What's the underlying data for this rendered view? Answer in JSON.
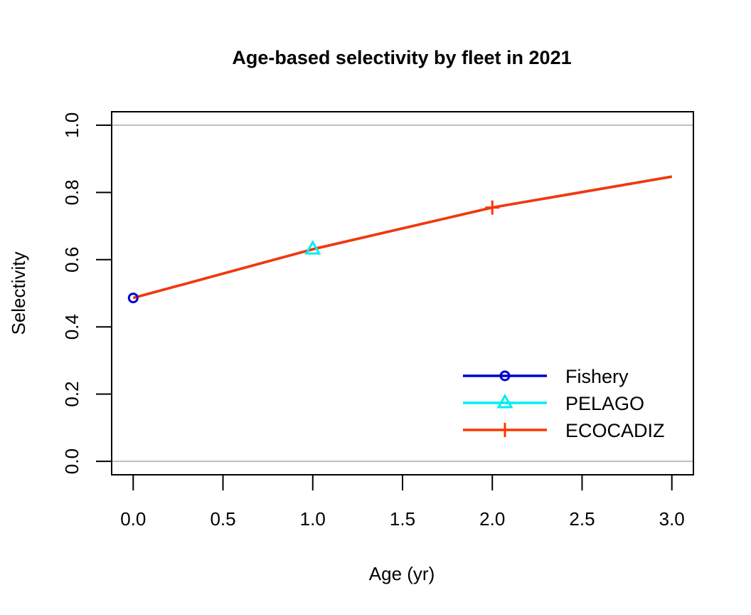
{
  "chart_data": {
    "type": "line",
    "title": "Age-based selectivity by fleet in 2021",
    "xlabel": "Age (yr)",
    "ylabel": "Selectivity",
    "xlim": [
      -0.12,
      3.12
    ],
    "ylim": [
      -0.04,
      1.04
    ],
    "x_ticks": [
      0.0,
      0.5,
      1.0,
      1.5,
      2.0,
      2.5,
      3.0
    ],
    "x_tick_labels": [
      "0.0",
      "0.5",
      "1.0",
      "1.5",
      "2.0",
      "2.5",
      "3.0"
    ],
    "y_ticks": [
      0.0,
      0.2,
      0.4,
      0.6,
      0.8,
      1.0
    ],
    "y_tick_labels": [
      "0.0",
      "0.2",
      "0.4",
      "0.6",
      "0.8",
      "1.0"
    ],
    "hlines": [
      0.0,
      1.0
    ],
    "hline_color": "#BEBEBE",
    "legend_position": "bottom-right",
    "x": [
      0,
      1,
      2,
      3
    ],
    "series": [
      {
        "name": "Fishery",
        "values": [
          0.486,
          0.631,
          0.755,
          0.847
        ],
        "color": "#0000CD",
        "marker": "circle"
      },
      {
        "name": "PELAGO",
        "values": [
          0.486,
          0.631,
          0.755,
          0.847
        ],
        "color": "#00EEEE",
        "marker": "triangle"
      },
      {
        "name": "ECOCADIZ",
        "values": [
          0.486,
          0.631,
          0.755,
          0.847
        ],
        "color": "#FF3300",
        "marker": "plus"
      }
    ],
    "marker_points": [
      {
        "series": 0,
        "x": 0
      },
      {
        "series": 1,
        "x": 1
      },
      {
        "series": 2,
        "x": 2
      }
    ]
  }
}
